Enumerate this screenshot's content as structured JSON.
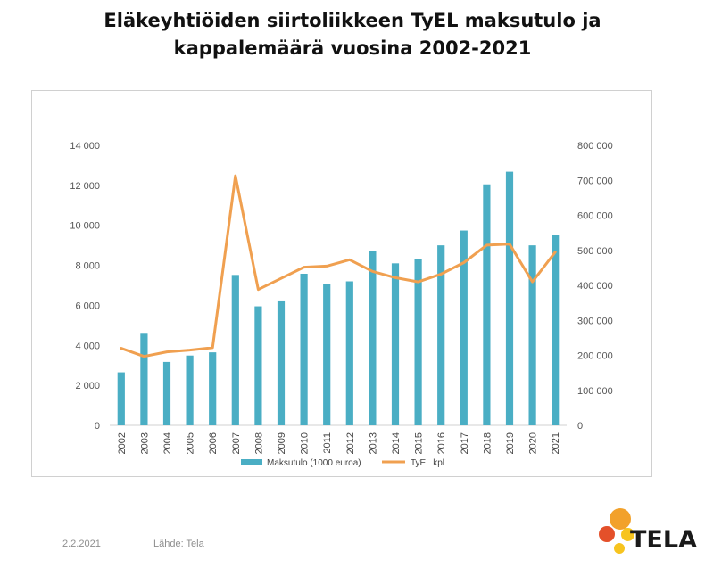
{
  "title": {
    "line1": "Eläkeyhtiöiden siirtoliikkeen TyEL maksutulo ja",
    "line2": "kappalemäärä vuosina 2002-2021"
  },
  "footer": {
    "date": "2.2.2021",
    "source": "Lähde: Tela"
  },
  "logo": {
    "text": "TELA",
    "colors": [
      "#f2a12b",
      "#f7c41f",
      "#e4502a"
    ]
  },
  "chart_data": {
    "type": "bar",
    "categories": [
      "2002",
      "2003",
      "2004",
      "2005",
      "2006",
      "2007",
      "2008",
      "2009",
      "2010",
      "2011",
      "2012",
      "2013",
      "2014",
      "2015",
      "2016",
      "2017",
      "2018",
      "2019",
      "2020",
      "2021"
    ],
    "series": [
      {
        "name": "Maksutulo (1000 euroa)",
        "type": "bar",
        "axis": "left",
        "color": "#4aaec4",
        "values": [
          2650,
          4580,
          3170,
          3490,
          3650,
          7520,
          5950,
          6200,
          7580,
          7050,
          7200,
          8730,
          8100,
          8300,
          9000,
          9740,
          12050,
          12680,
          9000,
          9520
        ]
      },
      {
        "name": "TyEL kpl",
        "type": "line",
        "axis": "right",
        "color": "#f0a050",
        "values": [
          220000,
          197000,
          210000,
          215000,
          222000,
          713000,
          388000,
          420000,
          452000,
          455000,
          473000,
          440000,
          422000,
          410000,
          432000,
          465000,
          515000,
          518000,
          410000,
          495000
        ]
      }
    ],
    "y_left": {
      "min": 0,
      "max": 14000,
      "step": 2000,
      "tick_labels": [
        "0",
        "2 000",
        "4 000",
        "6 000",
        "8 000",
        "10 000",
        "12 000",
        "14 000"
      ]
    },
    "y_right": {
      "min": 0,
      "max": 800000,
      "step": 100000,
      "tick_labels": [
        "0",
        "100 000",
        "200 000",
        "300 000",
        "400 000",
        "500 000",
        "600 000",
        "700 000",
        "800 000"
      ]
    },
    "grid": false,
    "legend_position": "bottom"
  }
}
